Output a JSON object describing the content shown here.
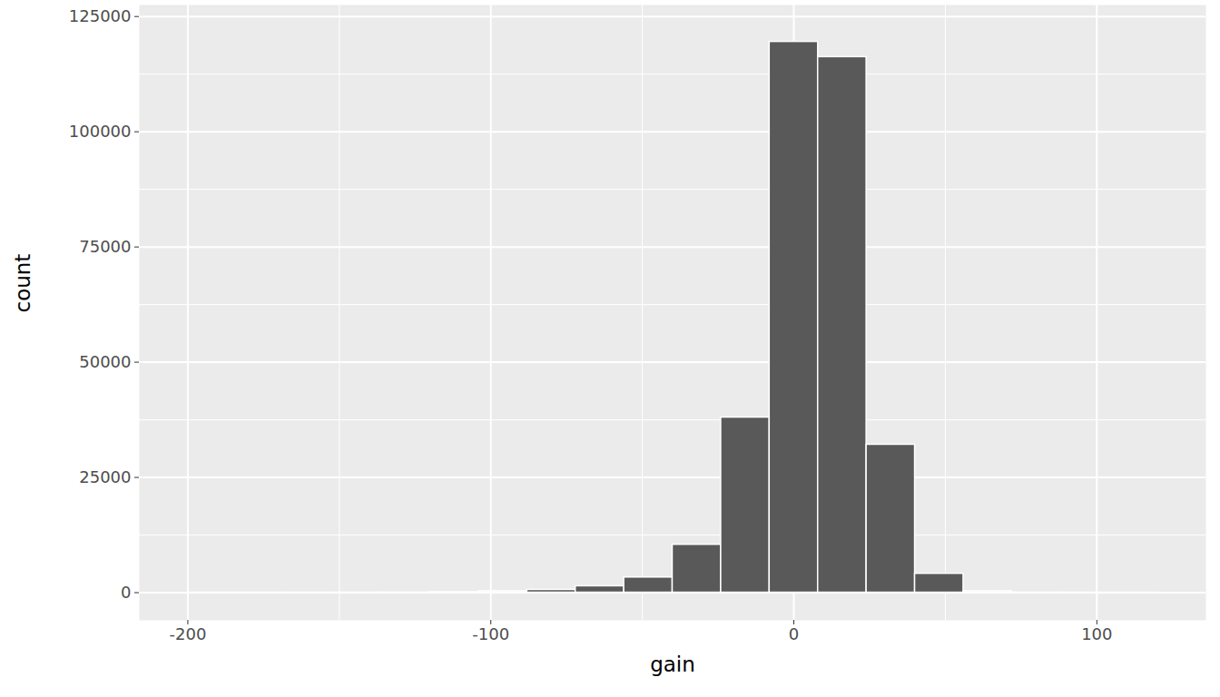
{
  "chart_data": {
    "type": "histogram",
    "x_label": "gain",
    "y_label": "count",
    "bins": [
      -200,
      -184,
      -168,
      -152,
      -136,
      -120,
      -104,
      -88,
      -72,
      -56,
      -40,
      -24,
      -8,
      8,
      24,
      40,
      56,
      72,
      88,
      104,
      120
    ],
    "values": [
      5,
      5,
      10,
      15,
      30,
      100,
      300,
      600,
      1400,
      3300,
      10400,
      38000,
      119500,
      116200,
      32100,
      4100,
      300,
      20,
      5,
      2
    ],
    "color": "#595959",
    "xlim": [
      -216,
      136
    ],
    "xticks": [
      -200,
      -100,
      0,
      100
    ],
    "ylim": [
      -6000,
      127500
    ],
    "yticks": [
      0,
      25000,
      50000,
      75000,
      100000,
      125000
    ],
    "grid": true
  }
}
